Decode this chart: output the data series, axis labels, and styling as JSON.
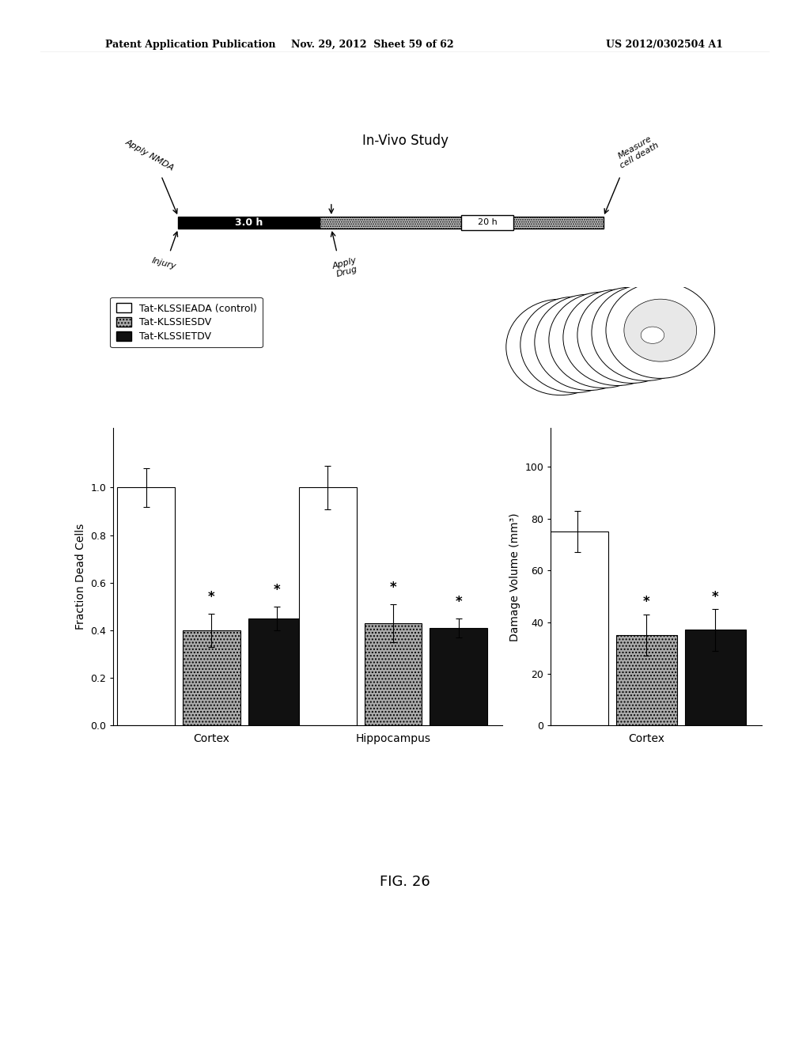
{
  "patent_header_left": "Patent Application Publication",
  "patent_header_mid": "Nov. 29, 2012  Sheet 59 of 62",
  "patent_header_right": "US 2012/0302504 A1",
  "title": "In-Vivo Study",
  "fig_label": "FIG. 26",
  "legend_labels": [
    "Tat-KLSSIEADA (control)",
    "Tat-KLSSIESDV",
    "Tat-KLSSIETDV"
  ],
  "legend_colors": [
    "#ffffff",
    "#aaaaaa",
    "#111111"
  ],
  "left_chart": {
    "ylabel": "Fraction Dead Cells",
    "ylim": [
      0,
      1.25
    ],
    "yticks": [
      0.0,
      0.2,
      0.4,
      0.6,
      0.8,
      1.0
    ],
    "groups": [
      "Cortex",
      "Hippocampus"
    ],
    "bars": {
      "Cortex": {
        "white": {
          "val": 1.0,
          "err": 0.08
        },
        "grey": {
          "val": 0.4,
          "err": 0.07
        },
        "black": {
          "val": 0.45,
          "err": 0.05
        }
      },
      "Hippocampus": {
        "white": {
          "val": 1.0,
          "err": 0.09
        },
        "grey": {
          "val": 0.43,
          "err": 0.08
        },
        "black": {
          "val": 0.41,
          "err": 0.04
        }
      }
    }
  },
  "right_chart": {
    "ylabel": "Damage Volume (mm³)",
    "ylim": [
      0,
      115
    ],
    "yticks": [
      0,
      20,
      40,
      60,
      80,
      100
    ],
    "groups": [
      "Cortex"
    ],
    "bars": {
      "Cortex": {
        "white": {
          "val": 75,
          "err": 8
        },
        "grey": {
          "val": 35,
          "err": 8
        },
        "black": {
          "val": 37,
          "err": 8
        }
      }
    }
  },
  "background_color": "#ffffff",
  "bar_width": 0.18,
  "bar_colors": [
    "#ffffff",
    "#aaaaaa",
    "#111111"
  ],
  "font_size_header": 9,
  "font_size_title": 12,
  "font_size_labels": 10,
  "font_size_ticks": 9,
  "font_size_legend": 9,
  "font_size_fig": 13
}
